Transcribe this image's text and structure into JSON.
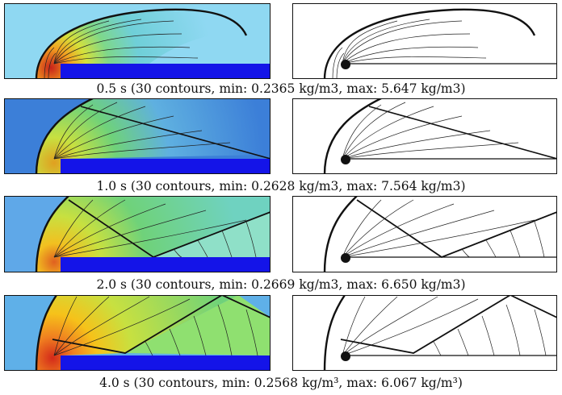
{
  "figure": {
    "captions": [
      "0.5 s (30 contours, min: 0.2365 kg/m3, max: 5.647 kg/m3)",
      "1.0 s (30 contours, min: 0.2628 kg/m3, max: 7.564 kg/m3)",
      "2.0 s (30 contours, min: 0.2669 kg/m3, max: 6.650 kg/m3)",
      "4.0 s (30 contours, min: 0.2568 kg/m³, max: 6.067 kg/m³)"
    ],
    "colors": {
      "freestream": "#8FD8F2",
      "block": "#1414E8",
      "hot": "#D42A1A",
      "warm": "#F6C21A",
      "mid": "#6FD27A",
      "cool": "#3C7FD8",
      "line": "#111111"
    }
  }
}
